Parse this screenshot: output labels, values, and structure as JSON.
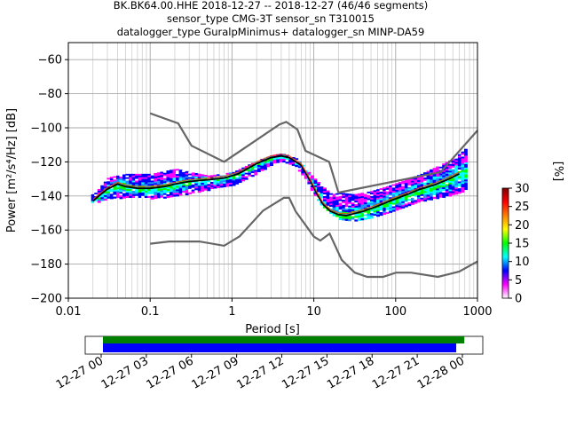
{
  "title_lines": [
    "BK.BK64.00.HHE   2018-12-27 -- 2018-12-27  (46/46 segments)",
    "sensor_type CMG-3T sensor_sn T310015",
    "datalogger_type GuralpMinimus+ datalogger_sn MINP-DA59"
  ],
  "chart_data": {
    "type": "heatmap",
    "xlabel": "Period [s]",
    "ylabel": "Power [m²/s⁴/Hz] [dB]",
    "xscale": "log",
    "xlim": [
      0.01,
      1000
    ],
    "ylim": [
      -200,
      -50
    ],
    "xticks": [
      {
        "value": 0.01,
        "label": "0.01"
      },
      {
        "value": 0.1,
        "label": "0.1"
      },
      {
        "value": 1,
        "label": "1"
      },
      {
        "value": 10,
        "label": "10"
      },
      {
        "value": 100,
        "label": "100"
      },
      {
        "value": 1000,
        "label": "1000"
      }
    ],
    "yticks": [
      {
        "value": -60,
        "label": "−60"
      },
      {
        "value": -80,
        "label": "−80"
      },
      {
        "value": -100,
        "label": "−100"
      },
      {
        "value": -120,
        "label": "−120"
      },
      {
        "value": -140,
        "label": "−140"
      },
      {
        "value": -160,
        "label": "−160"
      },
      {
        "value": -180,
        "label": "−180"
      },
      {
        "value": -200,
        "label": "−200"
      }
    ],
    "grid": true,
    "nhnm": [
      [
        0.1,
        -91.5
      ],
      [
        0.22,
        -97.4
      ],
      [
        0.32,
        -110.5
      ],
      [
        0.8,
        -120
      ],
      [
        3.8,
        -98
      ],
      [
        4.6,
        -96.5
      ],
      [
        6.3,
        -101
      ],
      [
        7.9,
        -113.5
      ],
      [
        15.4,
        -120
      ],
      [
        20,
        -138
      ],
      [
        354.8,
        -126
      ],
      [
        10000,
        -47.2
      ]
    ],
    "nlnm": [
      [
        0.1,
        -168
      ],
      [
        0.17,
        -166.7
      ],
      [
        0.4,
        -166.7
      ],
      [
        0.8,
        -169.2
      ],
      [
        1.24,
        -163.7
      ],
      [
        2.4,
        -148.6
      ],
      [
        4.3,
        -141.1
      ],
      [
        5,
        -141.1
      ],
      [
        6,
        -149
      ],
      [
        10,
        -163.8
      ],
      [
        12,
        -166.2
      ],
      [
        15.6,
        -162.1
      ],
      [
        21.9,
        -177.5
      ],
      [
        31.6,
        -185
      ],
      [
        45,
        -187.5
      ],
      [
        70,
        -187.5
      ],
      [
        101,
        -185
      ],
      [
        154,
        -185
      ],
      [
        328,
        -187.5
      ],
      [
        600,
        -184.4
      ],
      [
        10000,
        -151.5
      ]
    ],
    "mean_curve": [
      [
        0.02,
        -143
      ],
      [
        0.025,
        -139
      ],
      [
        0.03,
        -136
      ],
      [
        0.04,
        -133
      ],
      [
        0.05,
        -134.5
      ],
      [
        0.07,
        -135.5
      ],
      [
        0.1,
        -135.5
      ],
      [
        0.15,
        -134.5
      ],
      [
        0.2,
        -133
      ],
      [
        0.3,
        -131.5
      ],
      [
        0.5,
        -130.5
      ],
      [
        0.8,
        -129.5
      ],
      [
        1.2,
        -127
      ],
      [
        2,
        -121
      ],
      [
        3,
        -117.5
      ],
      [
        4,
        -116.5
      ],
      [
        5,
        -117.5
      ],
      [
        7,
        -122
      ],
      [
        9,
        -131
      ],
      [
        11,
        -139
      ],
      [
        13,
        -145
      ],
      [
        16,
        -149
      ],
      [
        20,
        -151
      ],
      [
        25,
        -151.5
      ],
      [
        30,
        -150.5
      ],
      [
        40,
        -149
      ],
      [
        60,
        -146
      ],
      [
        90,
        -142.5
      ],
      [
        140,
        -139
      ],
      [
        200,
        -136
      ],
      [
        300,
        -133.5
      ],
      [
        450,
        -130
      ],
      [
        600,
        -127
      ]
    ],
    "spread_upper": [
      [
        0.02,
        -139
      ],
      [
        0.03,
        -129
      ],
      [
        0.05,
        -127
      ],
      [
        0.1,
        -127
      ],
      [
        0.2,
        -124
      ],
      [
        0.3,
        -126
      ],
      [
        0.5,
        -128
      ],
      [
        1,
        -126
      ],
      [
        2,
        -119
      ],
      [
        3,
        -116
      ],
      [
        4,
        -115
      ],
      [
        6,
        -118
      ],
      [
        8,
        -125
      ],
      [
        11,
        -132
      ],
      [
        16,
        -139
      ],
      [
        20,
        -138
      ],
      [
        30,
        -139
      ],
      [
        50,
        -137
      ],
      [
        80,
        -134
      ],
      [
        120,
        -131
      ],
      [
        200,
        -127
      ],
      [
        300,
        -123
      ],
      [
        500,
        -118
      ],
      [
        700,
        -112
      ]
    ],
    "spread_lower": [
      [
        0.02,
        -144
      ],
      [
        0.03,
        -141
      ],
      [
        0.05,
        -141
      ],
      [
        0.1,
        -141
      ],
      [
        0.2,
        -140
      ],
      [
        0.3,
        -138
      ],
      [
        0.5,
        -136
      ],
      [
        1,
        -134
      ],
      [
        2,
        -126
      ],
      [
        3,
        -121
      ],
      [
        4,
        -120
      ],
      [
        6,
        -123
      ],
      [
        8,
        -131
      ],
      [
        11,
        -143
      ],
      [
        16,
        -151
      ],
      [
        20,
        -154
      ],
      [
        30,
        -155
      ],
      [
        50,
        -153
      ],
      [
        80,
        -150
      ],
      [
        120,
        -146
      ],
      [
        200,
        -143
      ],
      [
        300,
        -141
      ],
      [
        500,
        -139
      ],
      [
        700,
        -136
      ]
    ],
    "colorbar": {
      "label": "[%]",
      "min": 0,
      "max": 30,
      "ticks": [
        {
          "value": 0,
          "label": "0"
        },
        {
          "value": 5,
          "label": "5"
        },
        {
          "value": 10,
          "label": "10"
        },
        {
          "value": 15,
          "label": "15"
        },
        {
          "value": 20,
          "label": "20"
        },
        {
          "value": 25,
          "label": "25"
        },
        {
          "value": 30,
          "label": "30"
        }
      ],
      "colors": [
        "#ffffff",
        "#ff00ff",
        "#0000ff",
        "#00ffff",
        "#00ff00",
        "#ffff00",
        "#ff8000",
        "#ff0000",
        "#800000"
      ]
    }
  },
  "coverage": {
    "time_ticks": [
      {
        "frac": 0.0,
        "label": "12-27 00"
      },
      {
        "frac": 0.125,
        "label": "12-27 03"
      },
      {
        "frac": 0.25,
        "label": "12-27 06"
      },
      {
        "frac": 0.375,
        "label": "12-27 09"
      },
      {
        "frac": 0.5,
        "label": "12-27 12"
      },
      {
        "frac": 0.625,
        "label": "12-27 15"
      },
      {
        "frac": 0.75,
        "label": "12-27 18"
      },
      {
        "frac": 0.875,
        "label": "12-27 21"
      },
      {
        "frac": 1.0,
        "label": "12-28 00"
      }
    ],
    "data_bar": {
      "start": 0.0,
      "end": 0.998,
      "color": "#008000"
    },
    "psd_bar": {
      "start": 0.0,
      "end": 0.978,
      "color": "#0000ff"
    }
  }
}
